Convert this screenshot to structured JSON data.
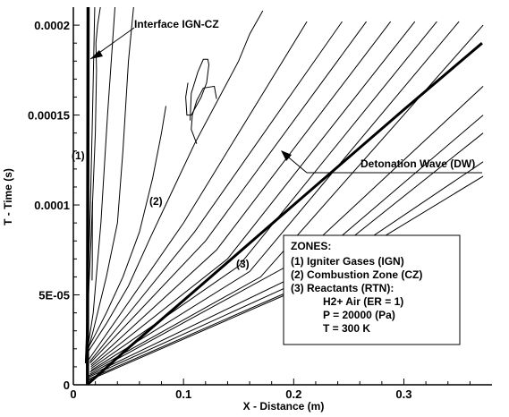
{
  "chart_data": {
    "type": "line",
    "xlabel": "X - Distance (m)",
    "ylabel": "T - Time (s)",
    "xlim": [
      0,
      0.38
    ],
    "ylim": [
      0,
      0.00021
    ],
    "x_ticks": [
      {
        "value": 0,
        "label": "0"
      },
      {
        "value": 0.1,
        "label": "0.1"
      },
      {
        "value": 0.2,
        "label": "0.2"
      },
      {
        "value": 0.3,
        "label": "0.3"
      }
    ],
    "y_ticks": [
      {
        "value": 0,
        "label": "0"
      },
      {
        "value": 5e-05,
        "label": "5E-05"
      },
      {
        "value": 0.0001,
        "label": "0.0001"
      },
      {
        "value": 0.00015,
        "label": "0.00015"
      },
      {
        "value": 0.0002,
        "label": "0.0002"
      }
    ],
    "grid": false,
    "legend": {
      "title": "ZONES:",
      "lines": [
        "(1)  Igniter Gases (IGN)",
        "(2)  Combustion Zone (CZ)",
        "(3)  Reactants (RTN):",
        "H2+ Air  (ER = 1)",
        "P = 20000  (Pa)",
        "T = 300 K"
      ]
    },
    "annotations": {
      "interface": "Interface IGN-CZ",
      "detonation": "Detonation Wave (DW)",
      "zone1": "(1)",
      "zone2": "(2)",
      "zone3": "(3)"
    },
    "interface_line": {
      "x": [
        0.0128,
        0.0128,
        0.013,
        0.0132,
        0.0134
      ],
      "y": [
        0,
        2e-05,
        8e-05,
        0.00015,
        0.000212
      ]
    },
    "detonation_wave": {
      "x": [
        0.0125,
        0.05,
        0.1,
        0.2,
        0.3,
        0.371
      ],
      "y": [
        0,
        2.05e-05,
        4.69e-05,
        0.0001,
        0.000153,
        0.00019
      ]
    },
    "contours": [
      {
        "x": [
          0.011,
          0.013,
          0.0155,
          0.0175,
          0.0195
        ],
        "y": [
          1.2e-05,
          5e-05,
          0.0001,
          0.000155,
          0.000212
        ]
      },
      {
        "x": [
          0.011,
          0.016,
          0.02,
          0.021,
          0.0205,
          0.022,
          0.025
        ],
        "y": [
          1.2e-05,
          8e-05,
          0.00014,
          0.000175,
          0.00019,
          0.0002,
          0.000212
        ]
      },
      {
        "x": [
          0.017,
          0.0172,
          0.0172,
          0.0174
        ],
        "y": [
          5.8e-05,
          6.8e-05,
          8.5e-05,
          0.000102
        ]
      },
      {
        "x": [
          0.011,
          0.018,
          0.025,
          0.031,
          0.038
        ],
        "y": [
          1.2e-05,
          4e-05,
          9e-05,
          0.00015,
          0.000212
        ]
      },
      {
        "x": [
          0.012,
          0.018,
          0.03,
          0.04,
          0.045,
          0.05,
          0.055
        ],
        "y": [
          1.6e-05,
          3e-05,
          6e-05,
          9e-05,
          0.00013,
          0.00018,
          0.000212
        ]
      },
      {
        "x": [
          0.013,
          0.02,
          0.03,
          0.045,
          0.06,
          0.072,
          0.08,
          0.084
        ],
        "y": [
          2e-05,
          2.8e-05,
          4e-05,
          6e-05,
          8.5e-05,
          0.000115,
          0.00014,
          0.000155
        ]
      },
      {
        "x": [
          0.013,
          0.03,
          0.05,
          0.07,
          0.09,
          0.11,
          0.15,
          0.16,
          0.172
        ],
        "y": [
          1.8e-05,
          3.4e-05,
          5.5e-05,
          8.2e-05,
          0.000108,
          0.000134,
          0.00018,
          0.000195,
          0.000208
        ]
      },
      {
        "x": [
          0.13,
          0.128,
          0.118,
          0.112,
          0.108,
          0.107,
          0.112
        ],
        "y": [
          0.000159,
          0.000166,
          0.000165,
          0.000158,
          0.00015,
          0.000142,
          0.000134
        ]
      },
      {
        "x": [
          0.106,
          0.107,
          0.113,
          0.118,
          0.122,
          0.123,
          0.121,
          0.116,
          0.107,
          0.103,
          0.102,
          0.104
        ],
        "y": [
          0.000147,
          0.000162,
          0.000174,
          0.000181,
          0.000181,
          0.000178,
          0.000168,
          0.00016,
          0.00015,
          0.00015,
          0.00016,
          0.000168
        ]
      },
      {
        "x": [
          0.014,
          0.1,
          0.212
        ],
        "y": [
          1.4e-05,
          9e-05,
          0.000202
        ]
      },
      {
        "x": [
          0.015,
          0.11,
          0.244
        ],
        "y": [
          1.3e-05,
          8.5e-05,
          0.000202
        ]
      },
      {
        "x": [
          0.015,
          0.12,
          0.266
        ],
        "y": [
          1.2e-05,
          8e-05,
          0.000202
        ]
      },
      {
        "x": [
          0.016,
          0.13,
          0.288
        ],
        "y": [
          1.1e-05,
          7.5e-05,
          0.000202
        ]
      },
      {
        "x": [
          0.016,
          0.14,
          0.31
        ],
        "y": [
          1e-05,
          7e-05,
          0.000202
        ]
      },
      {
        "x": [
          0.016,
          0.15,
          0.33
        ],
        "y": [
          9e-06,
          6.6e-05,
          0.000202
        ]
      },
      {
        "x": [
          0.016,
          0.16,
          0.35
        ],
        "y": [
          8e-06,
          6.3e-05,
          0.000202
        ]
      },
      {
        "x": [
          0.015,
          0.17,
          0.372
        ],
        "y": [
          7e-06,
          6e-05,
          0.0002
        ]
      },
      {
        "x": [
          0.015,
          0.2,
          0.372
        ],
        "y": [
          6e-06,
          6.8e-05,
          0.000166
        ]
      },
      {
        "x": [
          0.014,
          0.2,
          0.372
        ],
        "y": [
          5e-06,
          6e-05,
          0.00015
        ]
      },
      {
        "x": [
          0.013,
          0.2,
          0.372
        ],
        "y": [
          4e-06,
          5.6e-05,
          0.00014
        ]
      },
      {
        "x": [
          0.013,
          0.2,
          0.372
        ],
        "y": [
          3e-06,
          5.3e-05,
          0.000124
        ]
      },
      {
        "x": [
          0.012,
          0.2,
          0.372
        ],
        "y": [
          2e-06,
          5.2e-05,
          0.000116
        ]
      }
    ]
  }
}
